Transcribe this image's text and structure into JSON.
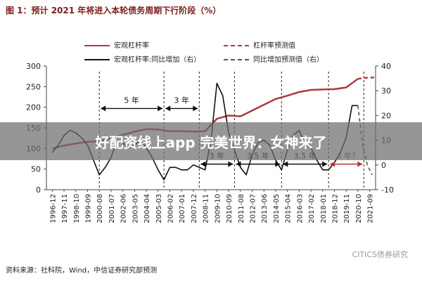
{
  "page": {
    "title": "图 1：预计 2021 年将进入本轮债务周期下行阶段（%）"
  },
  "legend": {
    "items": [
      {
        "label": "宏观杠杆率",
        "color": "#b0383c",
        "dash": false
      },
      {
        "label": "杠杆率预测值",
        "color": "#b0383c",
        "dash": true
      },
      {
        "label": "宏观杠杆率:同比增加（右）",
        "color": "#111111",
        "dash": false
      },
      {
        "label": "同比增加预测值（右）",
        "color": "#555555",
        "dash": true
      }
    ]
  },
  "chart_data": {
    "type": "line",
    "title": "图 1：预计 2021 年将进入本轮债务周期下行阶段（%）",
    "x_categories": [
      "1996-12",
      "1997-11",
      "1998-10",
      "1999-09",
      "2000-08",
      "2001-07",
      "2002-06",
      "2003-05",
      "2004-04",
      "2005-03",
      "2006-02",
      "2007-01",
      "2007-12",
      "2008-11",
      "2009-10",
      "2010-09",
      "2011-08",
      "2012-07",
      "2013-06",
      "2014-05",
      "2015-04",
      "2016-03",
      "2017-02",
      "2018-01",
      "2018-12",
      "2019-11",
      "2020-10",
      "2021-09"
    ],
    "y_left": {
      "min": 0,
      "max": 300,
      "ticks": [
        0,
        50,
        100,
        150,
        200,
        250,
        300
      ]
    },
    "y_right": {
      "min": -10,
      "max": 40,
      "ticks": [
        -10,
        0,
        10,
        20,
        30,
        40
      ]
    },
    "series": [
      {
        "name": "宏观杠杆率",
        "axis": "left",
        "style": "solid",
        "points": [
          [
            0,
            100
          ],
          [
            1,
            107
          ],
          [
            2,
            112
          ],
          [
            3,
            116
          ],
          [
            4,
            118
          ],
          [
            5,
            125
          ],
          [
            6,
            133
          ],
          [
            7,
            141
          ],
          [
            8,
            147
          ],
          [
            9,
            146
          ],
          [
            10,
            142
          ],
          [
            11,
            142
          ],
          [
            12,
            141
          ],
          [
            13,
            142
          ],
          [
            14,
            172
          ],
          [
            15,
            180
          ],
          [
            16,
            178
          ],
          [
            17,
            192
          ],
          [
            18,
            206
          ],
          [
            19,
            220
          ],
          [
            20,
            228
          ],
          [
            21,
            237
          ],
          [
            22,
            242
          ],
          [
            23,
            243
          ],
          [
            24,
            244
          ],
          [
            25,
            248
          ],
          [
            26,
            269
          ]
        ]
      },
      {
        "name": "杠杆率预测值",
        "axis": "left",
        "style": "dashed",
        "points": [
          [
            26,
            269
          ],
          [
            26.5,
            271
          ],
          [
            27,
            272
          ],
          [
            27.5,
            272
          ]
        ]
      },
      {
        "name": "宏观杠杆率:同比增加（右）",
        "axis": "right",
        "style": "solid",
        "points": [
          [
            0,
            5
          ],
          [
            0.5,
            8
          ],
          [
            1,
            12
          ],
          [
            1.5,
            14
          ],
          [
            2,
            13
          ],
          [
            2.5,
            11
          ],
          [
            3,
            8
          ],
          [
            3.5,
            2
          ],
          [
            4,
            -4
          ],
          [
            4.5,
            -1
          ],
          [
            5,
            3
          ],
          [
            5.5,
            10
          ],
          [
            6,
            9
          ],
          [
            6.5,
            7
          ],
          [
            7,
            8
          ],
          [
            7.5,
            10
          ],
          [
            8,
            7
          ],
          [
            8.5,
            3
          ],
          [
            9,
            -2
          ],
          [
            9.5,
            -6
          ],
          [
            10,
            -1
          ],
          [
            10.5,
            -1
          ],
          [
            11,
            -2
          ],
          [
            11.5,
            -2
          ],
          [
            12,
            0
          ],
          [
            12.5,
            -1
          ],
          [
            13,
            -2
          ],
          [
            13.5,
            10
          ],
          [
            14,
            33
          ],
          [
            14.5,
            28
          ],
          [
            15,
            13
          ],
          [
            15.5,
            6
          ],
          [
            16,
            -1
          ],
          [
            16.5,
            -4
          ],
          [
            17,
            4
          ],
          [
            17.5,
            9
          ],
          [
            18,
            10
          ],
          [
            18.5,
            8
          ],
          [
            19,
            2
          ],
          [
            19.5,
            -2
          ],
          [
            20,
            6
          ],
          [
            20.5,
            12
          ],
          [
            21,
            14
          ],
          [
            21.5,
            8
          ],
          [
            22,
            7
          ],
          [
            22.5,
            2
          ],
          [
            23,
            -2
          ],
          [
            23.5,
            -2
          ],
          [
            24,
            1
          ],
          [
            24.5,
            5
          ],
          [
            25,
            11
          ],
          [
            25.5,
            24
          ],
          [
            26,
            24
          ]
        ]
      },
      {
        "name": "同比增加预测值（右）",
        "axis": "right",
        "style": "dashed",
        "points": [
          [
            26,
            24
          ],
          [
            26.4,
            8
          ],
          [
            26.8,
            0
          ],
          [
            27.2,
            -4
          ]
        ]
      }
    ],
    "annotations": [
      {
        "text": "5 年",
        "x1": 4,
        "x2": 9.5,
        "y_left": 197,
        "color": "#111111"
      },
      {
        "text": "3 年",
        "x1": 9.5,
        "x2": 12.5,
        "y_left": 197,
        "color": "#111111"
      },
      {
        "text": "3 年",
        "x1": 12.5,
        "x2": 15.5,
        "y_left": 62,
        "color": "#111111"
      },
      {
        "text": "3.5 年",
        "x1": 15.5,
        "x2": 19.5,
        "y_left": 62,
        "color": "#111111"
      },
      {
        "text": "3.5 年",
        "x1": 19.5,
        "x2": 23.5,
        "y_left": 62,
        "color": "#111111"
      },
      {
        "text": "3 年?",
        "x1": 23.5,
        "x2": 26.5,
        "y_left": 62,
        "color": "#b0383c"
      }
    ],
    "cycle_markers_x": [
      4,
      9.5,
      12.5,
      15.5,
      19.5,
      23.5,
      26.5
    ]
  },
  "source": "资料来源：社科院，Wind，中信证券研究部预测",
  "watermark": "CITICS债券研究",
  "banner": "好配资线上app 完美世界：女神来了"
}
